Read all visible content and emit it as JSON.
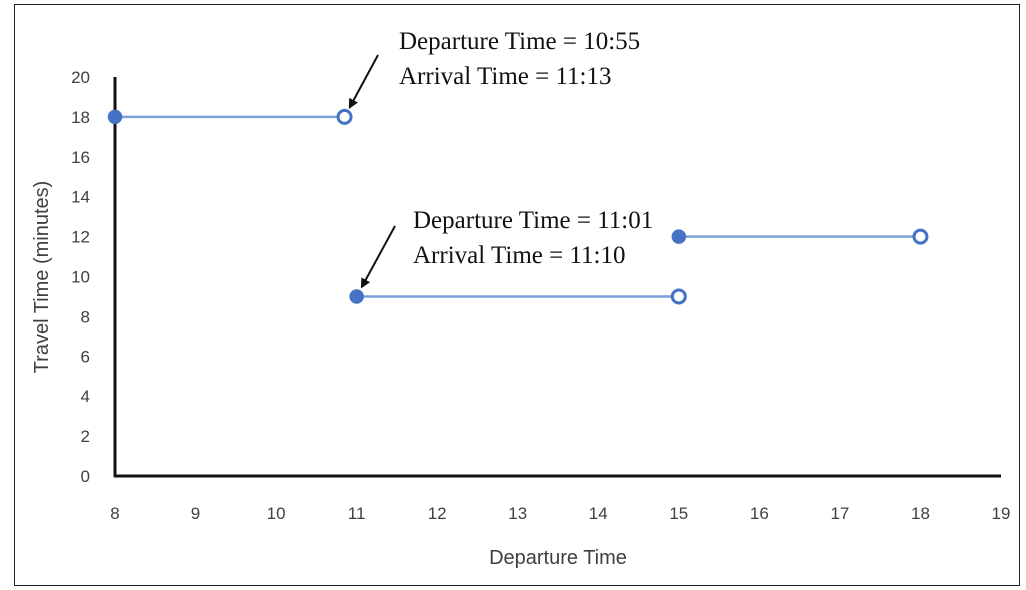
{
  "chart_data": {
    "type": "line",
    "title": "",
    "xlabel": "Departure Time",
    "ylabel": "Travel Time (minutes)",
    "xlim": [
      8,
      19
    ],
    "ylim": [
      0,
      20
    ],
    "x_ticks": [
      8,
      9,
      10,
      11,
      12,
      13,
      14,
      15,
      16,
      17,
      18,
      19
    ],
    "y_ticks": [
      0,
      2,
      4,
      6,
      8,
      10,
      12,
      14,
      16,
      18,
      20
    ],
    "grid": false,
    "line_color": "#7aa2d8",
    "marker_color": "#4472c4",
    "series": [
      {
        "x": [
          8,
          10.85
        ],
        "y": [
          18,
          18
        ],
        "start_marker": "filled",
        "end_marker": "open"
      },
      {
        "x": [
          11,
          15
        ],
        "y": [
          9,
          9
        ],
        "start_marker": "filled",
        "end_marker": "open"
      },
      {
        "x": [
          15,
          18
        ],
        "y": [
          12,
          12
        ],
        "start_marker": "filled",
        "end_marker": "open"
      }
    ],
    "annotations": [
      {
        "lines": [
          "Departure Time = 10:55",
          "Arrival Time = 11:13"
        ],
        "target": {
          "x": 10.85,
          "y": 18
        }
      },
      {
        "lines": [
          "Departure Time = 11:01",
          "Arrival Time = 11:10"
        ],
        "target": {
          "x": 11,
          "y": 9
        }
      }
    ]
  }
}
